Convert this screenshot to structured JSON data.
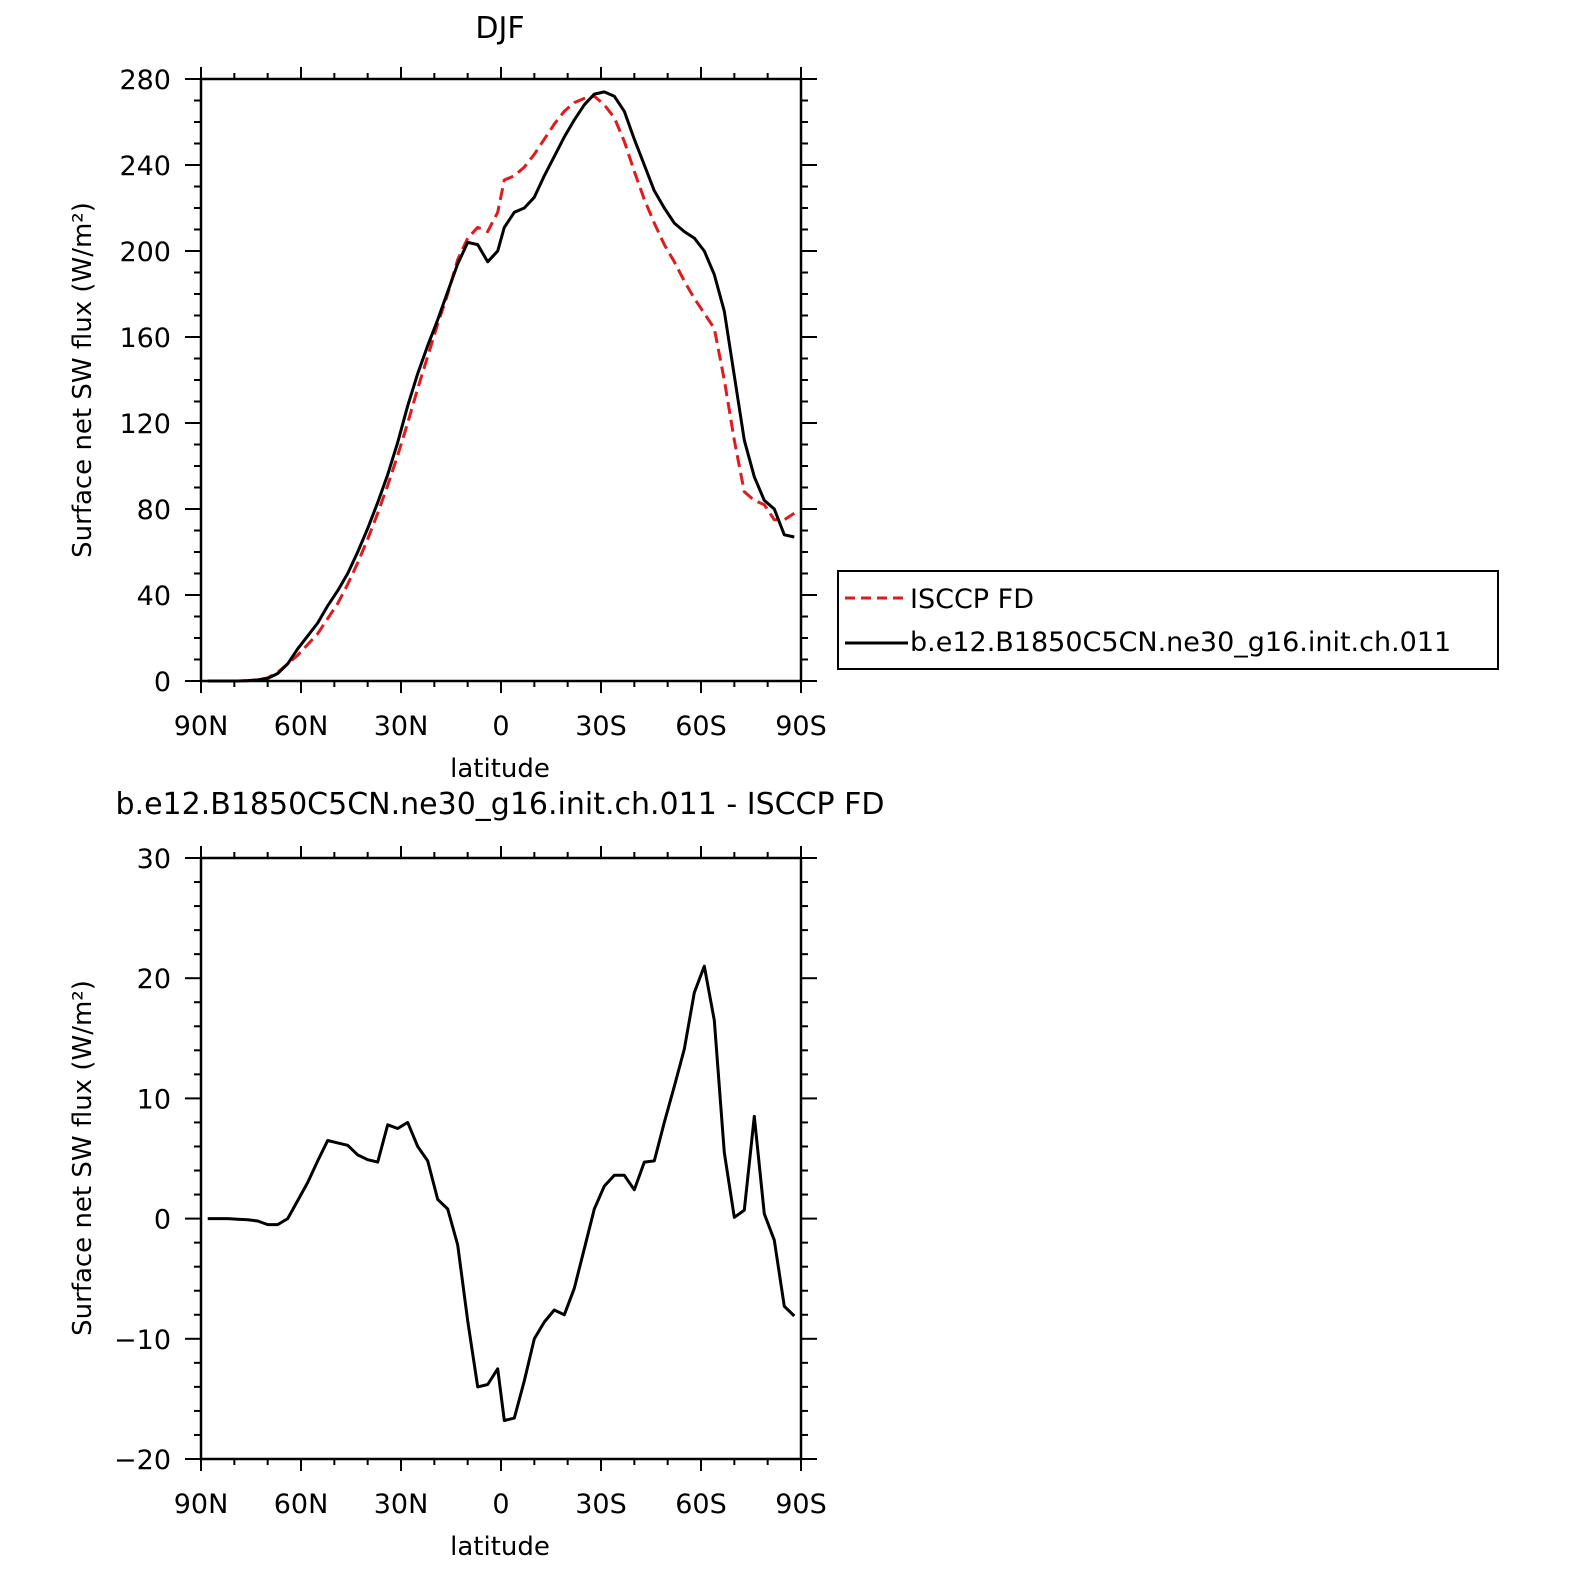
{
  "chart_data": [
    {
      "type": "line",
      "title": "DJF",
      "xlabel": "latitude",
      "ylabel": "Surface net SW flux (W/m²)",
      "xlim": [
        -90,
        90
      ],
      "ylim": [
        0,
        280
      ],
      "xticks": [
        -90,
        -60,
        -30,
        0,
        30,
        60,
        90
      ],
      "xtick_labels": [
        "90N",
        "60N",
        "30N",
        "0",
        "30S",
        "60S",
        "90S"
      ],
      "yticks": [
        0,
        40,
        80,
        120,
        160,
        200,
        240,
        280
      ],
      "ytick_labels": [
        "0",
        "40",
        "80",
        "120",
        "160",
        "200",
        "240",
        "280"
      ],
      "grid": false,
      "legend": "right, outside",
      "series": [
        {
          "name": "ISCCP FD",
          "color": "#e31a1c",
          "dash": "dashed",
          "x": [
            -88,
            -85,
            -82,
            -79,
            -76,
            -73,
            -70,
            -67,
            -64,
            -61,
            -58,
            -55,
            -52,
            -49,
            -46,
            -43,
            -40,
            -37,
            -34,
            -31,
            -28,
            -25,
            -22,
            -19,
            -16,
            -13,
            -10,
            -7,
            -4,
            -1,
            1,
            4,
            7,
            10,
            13,
            16,
            19,
            22,
            25,
            28,
            31,
            34,
            37,
            40,
            43,
            46,
            49,
            52,
            55,
            58,
            61,
            64,
            67,
            70,
            73,
            76,
            79,
            82,
            85,
            88
          ],
          "y": [
            0,
            0,
            0,
            0,
            0.2,
            0.5,
            1.5,
            4,
            8,
            12,
            17,
            22,
            29,
            36,
            45,
            55,
            66,
            78,
            91,
            105,
            120,
            136,
            151,
            166,
            180,
            196,
            206,
            211,
            209,
            218,
            233,
            235,
            239,
            245,
            252,
            259,
            265,
            269,
            271,
            272,
            268,
            262,
            251,
            237,
            224,
            213,
            203,
            195,
            186,
            178,
            171,
            164,
            140,
            112,
            88,
            84,
            82,
            75,
            75,
            78
          ]
        },
        {
          "name": "b.e12.B1850C5CN.ne30_g16.init.ch.011",
          "color": "#000000",
          "dash": "solid",
          "x": [
            -88,
            -85,
            -82,
            -79,
            -76,
            -73,
            -70,
            -67,
            -64,
            -61,
            -58,
            -55,
            -52,
            -49,
            -46,
            -43,
            -40,
            -37,
            -34,
            -31,
            -28,
            -25,
            -22,
            -19,
            -16,
            -13,
            -10,
            -7,
            -4,
            -1,
            1,
            4,
            7,
            10,
            13,
            16,
            19,
            22,
            25,
            28,
            31,
            34,
            37,
            40,
            43,
            46,
            49,
            52,
            55,
            58,
            61,
            64,
            67,
            70,
            73,
            76,
            79,
            82,
            85,
            88
          ],
          "y": [
            0,
            0,
            0,
            0,
            0.2,
            0.5,
            1.2,
            3.5,
            8,
            15,
            21,
            27,
            35,
            42,
            50,
            60,
            71,
            83,
            96,
            111,
            128,
            143,
            156,
            168,
            181,
            194,
            204,
            203,
            195,
            200,
            211,
            218,
            220,
            225,
            235,
            244,
            253,
            261,
            268,
            273,
            274,
            272,
            265,
            252,
            240,
            228,
            220,
            213,
            209,
            206,
            200,
            189,
            172,
            142,
            112,
            95,
            84,
            80,
            68,
            67
          ]
        }
      ]
    },
    {
      "type": "line",
      "title": "b.e12.B1850C5CN.ne30_g16.init.ch.011 - ISCCP FD",
      "xlabel": "latitude",
      "ylabel": "Surface net SW flux (W/m²)",
      "xlim": [
        -90,
        90
      ],
      "ylim": [
        -20,
        30
      ],
      "xticks": [
        -90,
        -60,
        -30,
        0,
        30,
        60,
        90
      ],
      "xtick_labels": [
        "90N",
        "60N",
        "30N",
        "0",
        "30S",
        "60S",
        "90S"
      ],
      "yticks": [
        -20,
        -10,
        0,
        10,
        20,
        30
      ],
      "ytick_labels": [
        "−20",
        "−10",
        "0",
        "10",
        "20",
        "30"
      ],
      "grid": false,
      "series": [
        {
          "color": "#000000",
          "dash": "solid",
          "x": [
            -88,
            -85,
            -82,
            -79,
            -76,
            -73,
            -70,
            -67,
            -64,
            -61,
            -58,
            -55,
            -52,
            -49,
            -46,
            -43,
            -40,
            -37,
            -34,
            -31,
            -28,
            -25,
            -22,
            -19,
            -16,
            -13,
            -10,
            -7,
            -4,
            -1,
            1,
            4,
            7,
            10,
            13,
            16,
            19,
            22,
            25,
            28,
            31,
            34,
            37,
            40,
            43,
            46,
            49,
            52,
            55,
            58,
            61,
            64,
            67,
            70,
            73,
            76,
            79,
            82,
            85,
            88
          ],
          "y": [
            0,
            0,
            0,
            -0.05,
            -0.1,
            -0.2,
            -0.5,
            -0.5,
            0,
            1.5,
            3.0,
            4.8,
            6.5,
            6.3,
            6.1,
            5.3,
            4.9,
            4.7,
            7.8,
            7.5,
            8.0,
            6.0,
            4.8,
            1.6,
            0.8,
            -2.2,
            -8.5,
            -14.0,
            -13.8,
            -12.5,
            -16.8,
            -16.6,
            -13.5,
            -10.0,
            -8.6,
            -7.6,
            -8.0,
            -5.8,
            -2.5,
            0.8,
            2.7,
            3.6,
            3.6,
            2.4,
            4.7,
            4.8,
            8.0,
            11.0,
            14.1,
            18.8,
            21.0,
            16.5,
            5.5,
            0.1,
            0.7,
            8.5,
            0.4,
            -1.8,
            -7.3,
            -8.1
          ]
        }
      ]
    }
  ]
}
